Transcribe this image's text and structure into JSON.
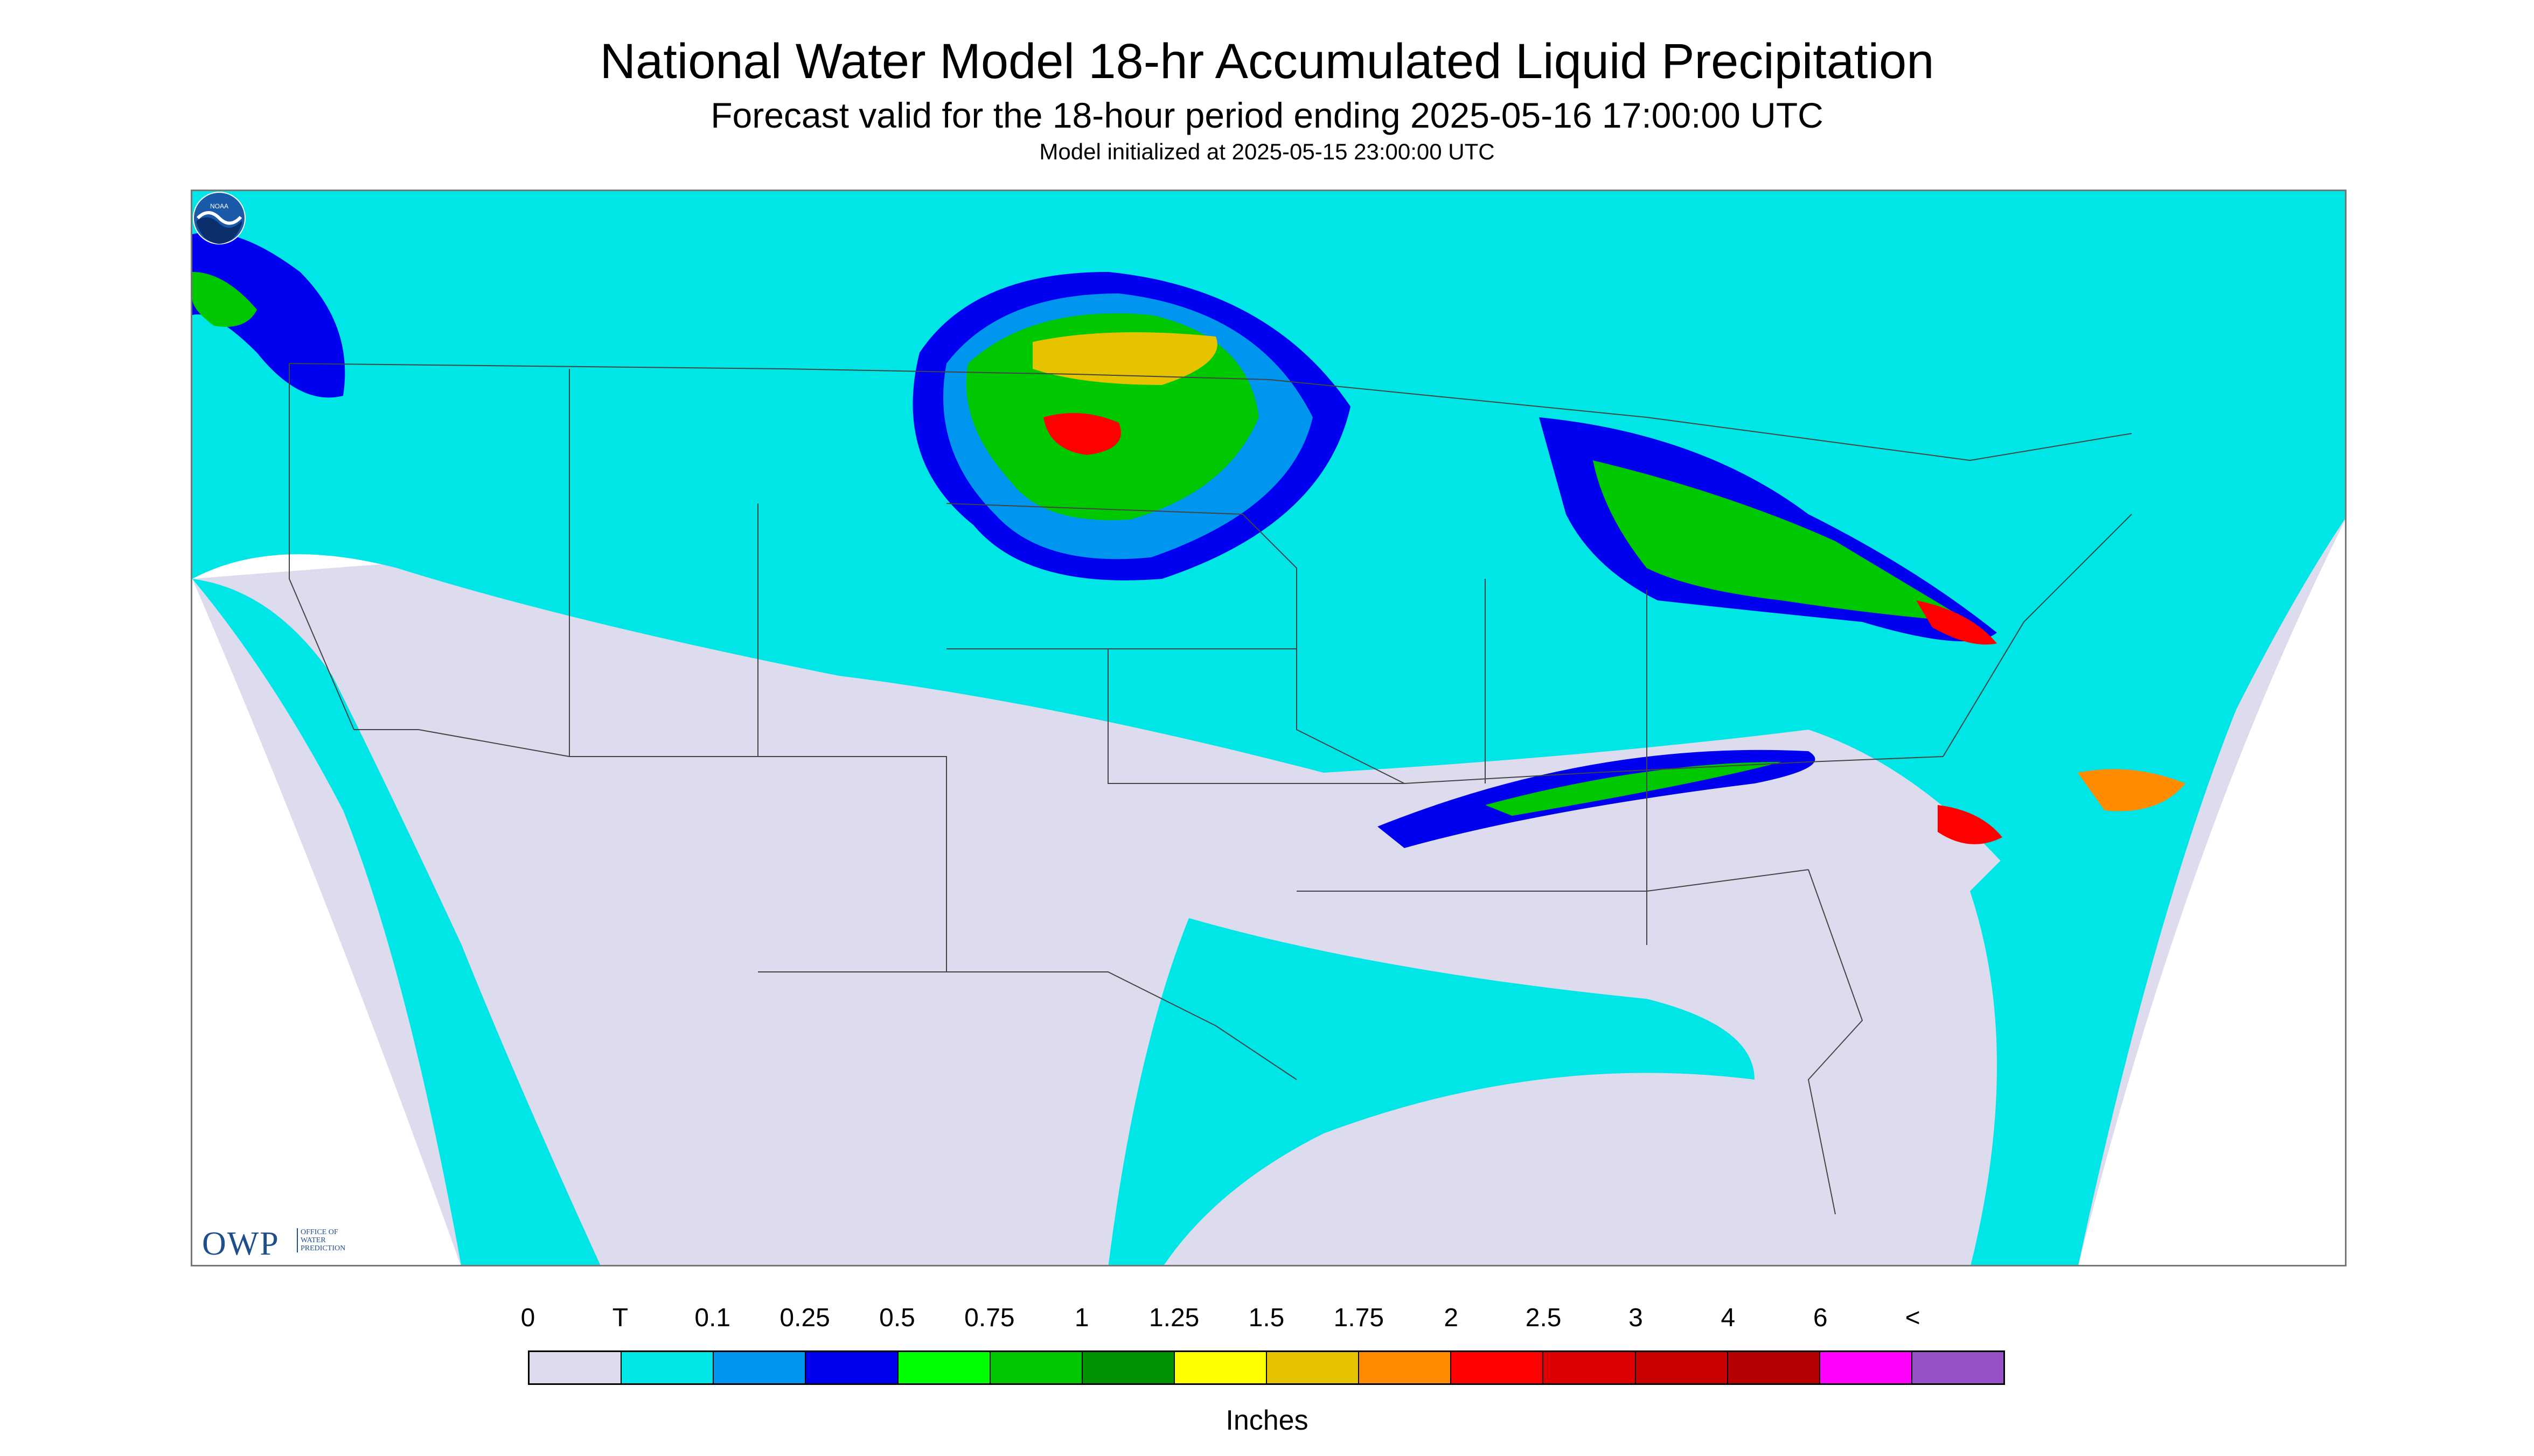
{
  "header": {
    "title": "National Water Model 18-hr Accumulated Liquid Precipitation",
    "subtitle": "Forecast valid for the 18-hour period ending 2025-05-16 17:00:00 UTC",
    "init_line": "Model initialized at 2025-05-15 23:00:00 UTC"
  },
  "logos": {
    "owp_text": "OWP",
    "owp_subtext_1": "OFFICE OF",
    "owp_subtext_2": "WATER",
    "owp_subtext_3": "PREDICTION",
    "noaa_text": "NOAA"
  },
  "legend": {
    "labels": [
      "0",
      "T",
      "0.1",
      "0.25",
      "0.5",
      "0.75",
      "1",
      "1.25",
      "1.5",
      "1.75",
      "2",
      "2.5",
      "3",
      "4",
      "6",
      "<"
    ],
    "colors": [
      "#dcdcee",
      "#00e6e6",
      "#0096f0",
      "#0000f0",
      "#00ff00",
      "#00c800",
      "#009000",
      "#ffff00",
      "#e6c300",
      "#ff8c00",
      "#ff0000",
      "#dc0000",
      "#c80000",
      "#b40000",
      "#ff00ff",
      "#9650c8"
    ],
    "units": "Inches"
  },
  "map_colors": {
    "no_data": "#ffffff",
    "zero": "#dcdcee",
    "trace": "#00e6e6",
    "light": "#0096f0",
    "moderate": "#0000f0",
    "green": "#00ff00",
    "dark_green": "#009000",
    "yellow": "#ffff00",
    "orange": "#ff8c00",
    "red": "#ff0000",
    "border": "#444444"
  }
}
